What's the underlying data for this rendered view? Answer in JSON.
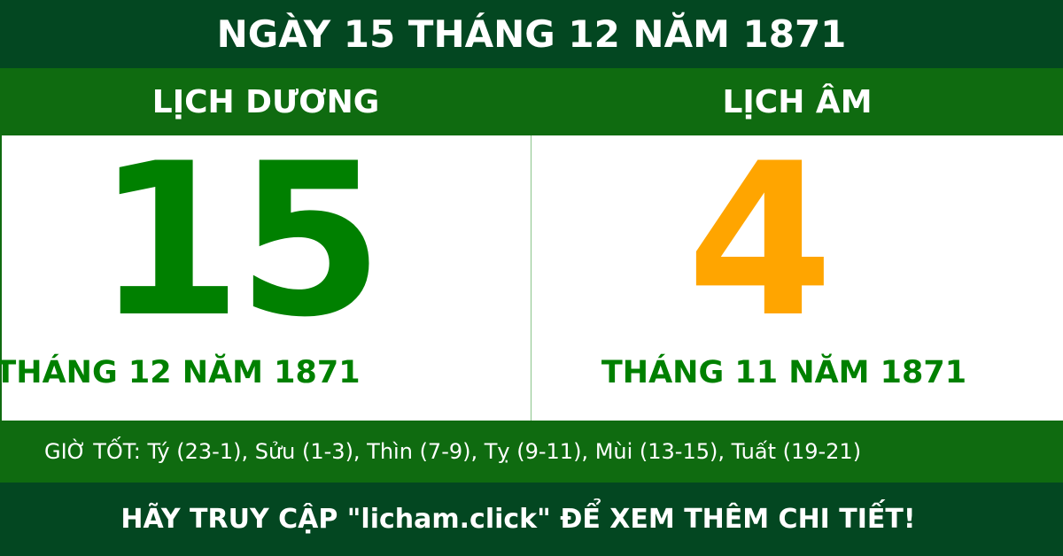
{
  "header": {
    "title": "NGÀY 15 THÁNG 12 NĂM 1871"
  },
  "solar": {
    "label": "LỊCH DƯƠNG",
    "day": "15",
    "month_year": "THÁNG 12 NĂM 1871"
  },
  "lunar": {
    "label": "LỊCH ÂM",
    "day": "4",
    "month_year": "THÁNG 11 NĂM 1871"
  },
  "good_hours": "GIỜ TỐT: Tý (23-1), Sửu (1-3), Thìn (7-9), Tỵ (9-11), Mùi (13-15), Tuất (19-21)",
  "footer": {
    "cta": "HÃY TRUY CẬP \"licham.click\" ĐỂ XEM THÊM CHI TIẾT!"
  },
  "colors": {
    "dark_green": "#034721",
    "green": "#0f6b10",
    "solar_number": "#008000",
    "lunar_number": "#ffa500"
  }
}
